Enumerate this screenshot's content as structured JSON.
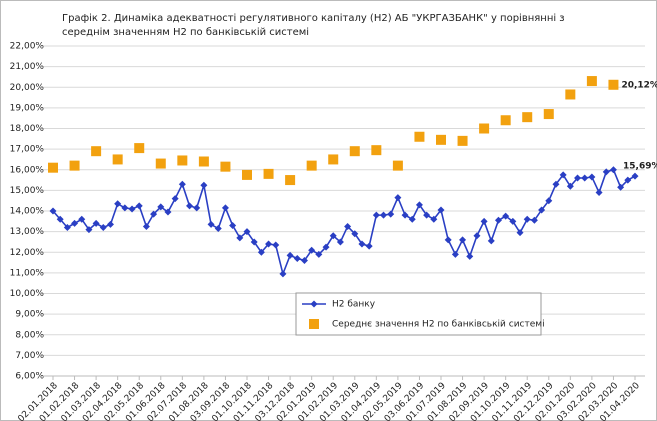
{
  "chart_data": {
    "type": "line",
    "title": [
      "Графік 2. Динаміка адекватності регулятивного капіталу (Н2) АБ \"УКРГАЗБАНК\" у порівнянні з",
      "середнім значенням Н2 по банківській системі"
    ],
    "categories": [
      "02.01.2018",
      null,
      null,
      "01.02.2018",
      null,
      null,
      "01.03.2018",
      null,
      null,
      "02.04.2018",
      null,
      null,
      "02.05.2018",
      null,
      null,
      "01.06.2018",
      null,
      null,
      "02.07.2018",
      null,
      null,
      "01.08.2018",
      null,
      null,
      "03.09.2018",
      null,
      null,
      "01.10.2018",
      null,
      null,
      "01.11.2018",
      null,
      null,
      "03.12.2018",
      null,
      null,
      "02.01.2019",
      null,
      null,
      "01.02.2019",
      null,
      null,
      "01.03.2019",
      null,
      null,
      "01.04.2019",
      null,
      null,
      "02.05.2019",
      null,
      null,
      "03.06.2019",
      null,
      null,
      "01.07.2019",
      null,
      null,
      "01.08.2019",
      null,
      null,
      "02.09.2019",
      null,
      null,
      "01.10.2019",
      null,
      null,
      "01.11.2019",
      null,
      null,
      "02.12.2019",
      null,
      null,
      "02.01.2020",
      null,
      null,
      "03.02.2020",
      null,
      null,
      "02.03.2020",
      null,
      null,
      "01.04.2020"
    ],
    "series": [
      {
        "name": "Н2 банку",
        "color": "#2a3fc4",
        "style": "line",
        "values": [
          14.0,
          13.6,
          13.2,
          13.4,
          13.6,
          13.1,
          13.4,
          13.2,
          13.35,
          14.35,
          14.15,
          14.1,
          14.25,
          13.25,
          13.85,
          14.2,
          13.95,
          14.6,
          15.3,
          14.25,
          14.15,
          15.25,
          13.35,
          13.15,
          14.15,
          13.3,
          12.7,
          13.0,
          12.5,
          12.0,
          12.4,
          12.35,
          10.95,
          11.85,
          11.7,
          11.6,
          12.1,
          11.9,
          12.25,
          12.8,
          12.5,
          13.25,
          12.9,
          12.4,
          12.3,
          13.8,
          13.8,
          13.85,
          14.65,
          13.8,
          13.6,
          14.3,
          13.8,
          13.6,
          14.05,
          12.6,
          11.9,
          12.6,
          11.8,
          12.8,
          13.5,
          12.55,
          13.55,
          13.75,
          13.5,
          12.95,
          13.6,
          13.55,
          14.05,
          14.5,
          15.3,
          15.75,
          15.2,
          15.6,
          15.6,
          15.65,
          14.9,
          15.9,
          16.0,
          15.15,
          15.5,
          15.69
        ],
        "value_labels": [
          null,
          null,
          null,
          null,
          null,
          null,
          null,
          null,
          null,
          null,
          null,
          null,
          null,
          null,
          null,
          null,
          null,
          null,
          null,
          null,
          null,
          null,
          null,
          null,
          null,
          null,
          null,
          null,
          null,
          null,
          null,
          null,
          null,
          null,
          null,
          null,
          null,
          null,
          null,
          null,
          null,
          null,
          null,
          null,
          null,
          null,
          null,
          null,
          null,
          null,
          null,
          null,
          null,
          null,
          null,
          null,
          null,
          null,
          null,
          null,
          null,
          null,
          null,
          null,
          null,
          null,
          null,
          null,
          null,
          null,
          null,
          null,
          null,
          null,
          null,
          null,
          null,
          null,
          null,
          null,
          null,
          "15,69%"
        ]
      },
      {
        "name": "Середнє значення Н2 по банківській системі",
        "color": "#f2a10f",
        "style": "markers",
        "values": [
          16.1,
          null,
          null,
          16.2,
          null,
          null,
          16.9,
          null,
          null,
          16.5,
          null,
          null,
          17.05,
          null,
          null,
          16.3,
          null,
          null,
          16.45,
          null,
          null,
          16.4,
          null,
          null,
          16.15,
          null,
          null,
          15.75,
          null,
          null,
          15.8,
          null,
          null,
          15.5,
          null,
          null,
          16.2,
          null,
          null,
          16.5,
          null,
          null,
          16.9,
          null,
          null,
          16.95,
          null,
          null,
          16.2,
          null,
          null,
          17.6,
          null,
          null,
          17.45,
          null,
          null,
          17.4,
          null,
          null,
          18.0,
          null,
          null,
          18.4,
          null,
          null,
          18.55,
          null,
          null,
          18.7,
          null,
          null,
          19.65,
          null,
          null,
          20.3,
          null,
          null,
          20.12,
          null,
          null,
          null
        ],
        "value_labels": [
          null,
          null,
          null,
          null,
          null,
          null,
          null,
          null,
          null,
          null,
          null,
          null,
          null,
          null,
          null,
          null,
          null,
          null,
          null,
          null,
          null,
          null,
          null,
          null,
          null,
          null,
          null,
          null,
          null,
          null,
          null,
          null,
          null,
          null,
          null,
          null,
          null,
          null,
          null,
          null,
          null,
          null,
          null,
          null,
          null,
          null,
          null,
          null,
          null,
          null,
          null,
          null,
          null,
          null,
          null,
          null,
          null,
          null,
          null,
          null,
          null,
          null,
          null,
          null,
          null,
          null,
          null,
          null,
          null,
          null,
          null,
          null,
          null,
          null,
          null,
          null,
          null,
          null,
          "20,12%",
          null,
          null,
          null
        ]
      }
    ],
    "ylim": [
      6,
      22
    ],
    "yticks": [
      {
        "value": 6,
        "label": "6,00%"
      },
      {
        "value": 7,
        "label": "7,00%"
      },
      {
        "value": 8,
        "label": "8,00%"
      },
      {
        "value": 9,
        "label": "9,00%"
      },
      {
        "value": 10,
        "label": "10,00%"
      },
      {
        "value": 11,
        "label": "11,00%"
      },
      {
        "value": 12,
        "label": "12,00%"
      },
      {
        "value": 13,
        "label": "13,00%"
      },
      {
        "value": 14,
        "label": "14,00%"
      },
      {
        "value": 15,
        "label": "15,00%"
      },
      {
        "value": 16,
        "label": "16,00%"
      },
      {
        "value": 17,
        "label": "17,00%"
      },
      {
        "value": 18,
        "label": "18,00%"
      },
      {
        "value": 19,
        "label": "19,00%"
      },
      {
        "value": 20,
        "label": "20,00%"
      },
      {
        "value": 21,
        "label": "21,00%"
      },
      {
        "value": 22,
        "label": "22,00%"
      }
    ],
    "grid": true,
    "legend": "center"
  }
}
